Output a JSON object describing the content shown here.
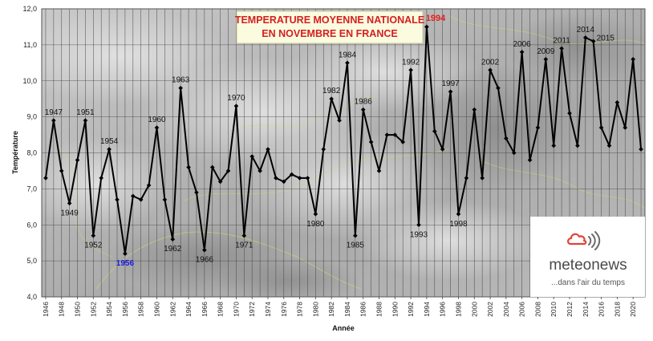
{
  "chart_data": {
    "type": "line",
    "title_line1": "TEMPERATURE MOYENNE NATIONALE",
    "title_year": "1994",
    "title_line2": "EN NOVEMBRE EN FRANCE",
    "xlabel": "Année",
    "ylabel": "Température",
    "ylim": [
      4.0,
      12.0
    ],
    "ytick_labels": [
      "4,0",
      "5,0",
      "6,0",
      "7,0",
      "8,0",
      "9,0",
      "10,0",
      "11,0",
      "12,0"
    ],
    "x_range": [
      1946,
      2021
    ],
    "xtick_years": [
      1946,
      1948,
      1950,
      1952,
      1954,
      1956,
      1958,
      1960,
      1962,
      1964,
      1966,
      1968,
      1970,
      1972,
      1974,
      1976,
      1978,
      1980,
      1982,
      1984,
      1986,
      1988,
      1990,
      1992,
      1994,
      1996,
      1998,
      2000,
      2002,
      2004,
      2006,
      2008,
      2010,
      2012,
      2014,
      2016,
      2018,
      2020
    ],
    "grid": true,
    "line_color": "#000000",
    "min_label_color": "#1a1ae6",
    "max_label_color": "#e2201b",
    "series": [
      {
        "x": [
          1946,
          1947,
          1948,
          1949,
          1950,
          1951,
          1952,
          1953,
          1954,
          1955,
          1956,
          1957,
          1958,
          1959,
          1960,
          1961,
          1962,
          1963,
          1964,
          1965,
          1966,
          1967,
          1968,
          1969,
          1970,
          1971,
          1972,
          1973,
          1974,
          1975,
          1976,
          1977,
          1978,
          1979,
          1980,
          1981,
          1982,
          1983,
          1984,
          1985,
          1986,
          1987,
          1988,
          1989,
          1990,
          1991,
          1992,
          1993,
          1994,
          1995,
          1996,
          1997,
          1998,
          1999,
          2000,
          2001,
          2002,
          2003,
          2004,
          2005,
          2006,
          2007,
          2008,
          2009,
          2010,
          2011,
          2012,
          2013,
          2014,
          2015,
          2016,
          2017,
          2018,
          2019,
          2020,
          2021
        ],
        "values": [
          7.3,
          8.9,
          7.5,
          6.6,
          7.8,
          8.9,
          5.7,
          7.3,
          8.1,
          6.7,
          5.2,
          6.8,
          6.7,
          7.1,
          8.7,
          6.7,
          5.6,
          9.8,
          7.6,
          6.9,
          5.3,
          7.6,
          7.2,
          7.5,
          9.3,
          5.7,
          7.9,
          7.5,
          8.1,
          7.3,
          7.2,
          7.4,
          7.3,
          7.3,
          6.3,
          8.1,
          9.5,
          8.9,
          10.5,
          5.7,
          9.2,
          8.3,
          7.5,
          8.5,
          8.5,
          8.3,
          10.3,
          6.0,
          11.5,
          8.6,
          8.1,
          9.7,
          6.3,
          7.3,
          9.2,
          7.3,
          10.3,
          9.8,
          8.4,
          8.0,
          10.8,
          7.8,
          8.7,
          10.6,
          8.2,
          10.9,
          9.1,
          8.2,
          11.2,
          11.1,
          8.7,
          8.2,
          9.4,
          8.7,
          10.6,
          8.1
        ]
      }
    ],
    "annotations": [
      {
        "year": 1947,
        "text": "1947",
        "pos": "above",
        "kind": "normal"
      },
      {
        "year": 1949,
        "text": "1949",
        "pos": "below",
        "kind": "normal"
      },
      {
        "year": 1951,
        "text": "1951",
        "pos": "above",
        "kind": "normal"
      },
      {
        "year": 1952,
        "text": "1952",
        "pos": "below",
        "kind": "normal"
      },
      {
        "year": 1954,
        "text": "1954",
        "pos": "above",
        "kind": "normal"
      },
      {
        "year": 1956,
        "text": "1956",
        "pos": "below",
        "kind": "min"
      },
      {
        "year": 1960,
        "text": "1960",
        "pos": "above",
        "kind": "normal"
      },
      {
        "year": 1962,
        "text": "1962",
        "pos": "below",
        "kind": "normal"
      },
      {
        "year": 1963,
        "text": "1963",
        "pos": "above",
        "kind": "normal"
      },
      {
        "year": 1966,
        "text": "1966",
        "pos": "below",
        "kind": "normal"
      },
      {
        "year": 1970,
        "text": "1970",
        "pos": "above",
        "kind": "normal"
      },
      {
        "year": 1971,
        "text": "1971",
        "pos": "below",
        "kind": "normal"
      },
      {
        "year": 1980,
        "text": "1980",
        "pos": "below",
        "kind": "normal"
      },
      {
        "year": 1982,
        "text": "1982",
        "pos": "above",
        "kind": "normal"
      },
      {
        "year": 1984,
        "text": "1984",
        "pos": "above",
        "kind": "normal"
      },
      {
        "year": 1985,
        "text": "1985",
        "pos": "below",
        "kind": "normal"
      },
      {
        "year": 1986,
        "text": "1986",
        "pos": "above",
        "kind": "normal"
      },
      {
        "year": 1992,
        "text": "1992",
        "pos": "above",
        "kind": "normal"
      },
      {
        "year": 1993,
        "text": "1993",
        "pos": "below",
        "kind": "normal"
      },
      {
        "year": 1997,
        "text": "1997",
        "pos": "above",
        "kind": "normal"
      },
      {
        "year": 1998,
        "text": "1998",
        "pos": "below",
        "kind": "normal"
      },
      {
        "year": 2002,
        "text": "2002",
        "pos": "above",
        "kind": "normal"
      },
      {
        "year": 2006,
        "text": "2006",
        "pos": "above",
        "kind": "normal"
      },
      {
        "year": 2009,
        "text": "2009",
        "pos": "above",
        "kind": "normal"
      },
      {
        "year": 2011,
        "text": "2011",
        "pos": "above",
        "kind": "normal"
      },
      {
        "year": 2014,
        "text": "2014",
        "pos": "above",
        "kind": "normal"
      },
      {
        "year": 2015,
        "text": "2015",
        "pos": "above-right",
        "kind": "normal"
      }
    ]
  },
  "logo": {
    "brand": "meteonews",
    "tagline": "...dans l'air du temps",
    "icon": "cloud-signal-icon",
    "icon_color": "#e0433a"
  }
}
